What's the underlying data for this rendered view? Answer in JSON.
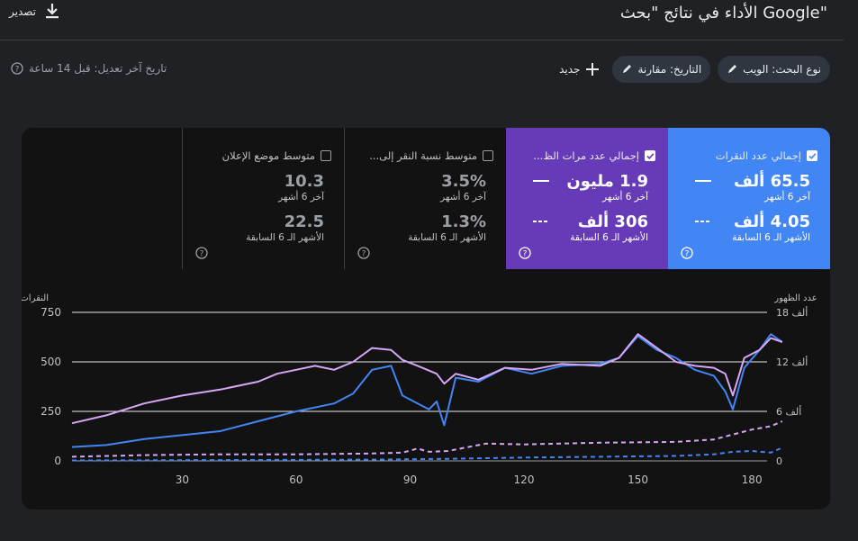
{
  "header": {
    "title": "الأداء في نتائج \"بحث Google\"",
    "export_label": "تصدير"
  },
  "filters": {
    "search_type": "نوع البحث: الويب",
    "date": "التاريخ: مقارنة",
    "new_label": "جديد",
    "last_updated": "تاريخ آخر تعديل: قبل 14 ساعة"
  },
  "tiles": [
    {
      "label": "إجمالي عدد النقرات",
      "checked": true,
      "value1": "65.5 ألف",
      "sub1": "آخر 6 أشهر",
      "value2": "4.05 ألف",
      "sub2": "الأشهر الـ 6 السابقة"
    },
    {
      "label": "إجمالي عدد مرات الظ...",
      "checked": true,
      "value1": "1.9 مليون",
      "sub1": "آخر 6 أشهر",
      "value2": "306 ألف",
      "sub2": "الأشهر الـ 6 السابقة"
    },
    {
      "label": "متوسط نسبة النقر إلى...",
      "checked": false,
      "value1": "3.5%",
      "sub1": "آخر 6 أشهر",
      "value2": "1.3%",
      "sub2": "الأشهر الـ 6 السابقة"
    },
    {
      "label": "متوسط موضع الإعلان",
      "checked": false,
      "value1": "10.3",
      "sub1": "آخر 6 أشهر",
      "value2": "22.5",
      "sub2": "الأشهر الـ 6 السابقة"
    }
  ],
  "colors": {
    "clicks": "#4285f4",
    "impressions": "#d7a6f5",
    "tile_clicks": "#4285f4",
    "tile_impressions": "#673ab7"
  },
  "chart_data": {
    "type": "line",
    "xlabel": "",
    "ylabel": "النقرات",
    "ylabel_right": "عدد الظهور",
    "x_ticks": [
      30,
      60,
      90,
      120,
      150,
      180
    ],
    "xlim": [
      1,
      184
    ],
    "ylim": [
      0,
      750
    ],
    "y_ticks": [
      0,
      250,
      500,
      750
    ],
    "ylim_right": [
      0,
      18
    ],
    "y_ticks_right": [
      "0",
      "6 ألف",
      "12 ألف",
      "18 ألف"
    ],
    "grid": true,
    "series": [
      {
        "axis": "left",
        "style": "solid",
        "color": "#4285f4",
        "points": [
          [
            1,
            70
          ],
          [
            10,
            80
          ],
          [
            20,
            110
          ],
          [
            30,
            130
          ],
          [
            40,
            150
          ],
          [
            50,
            200
          ],
          [
            60,
            250
          ],
          [
            70,
            290
          ],
          [
            75,
            340
          ],
          [
            80,
            460
          ],
          [
            85,
            480
          ],
          [
            88,
            330
          ],
          [
            92,
            290
          ],
          [
            95,
            260
          ],
          [
            97,
            300
          ],
          [
            99,
            180
          ],
          [
            102,
            420
          ],
          [
            108,
            400
          ],
          [
            115,
            470
          ],
          [
            122,
            440
          ],
          [
            130,
            480
          ],
          [
            140,
            490
          ],
          [
            145,
            520
          ],
          [
            150,
            630
          ],
          [
            155,
            560
          ],
          [
            160,
            520
          ],
          [
            165,
            460
          ],
          [
            170,
            430
          ],
          [
            173,
            350
          ],
          [
            175,
            260
          ],
          [
            178,
            470
          ],
          [
            182,
            560
          ],
          [
            185,
            640
          ],
          [
            188,
            600
          ]
        ]
      },
      {
        "axis": "left",
        "style": "solid",
        "color": "#d7a6f5",
        "points": [
          [
            1,
            190
          ],
          [
            10,
            230
          ],
          [
            20,
            290
          ],
          [
            30,
            330
          ],
          [
            40,
            360
          ],
          [
            50,
            400
          ],
          [
            55,
            440
          ],
          [
            60,
            460
          ],
          [
            65,
            480
          ],
          [
            70,
            460
          ],
          [
            75,
            500
          ],
          [
            80,
            570
          ],
          [
            85,
            560
          ],
          [
            88,
            510
          ],
          [
            92,
            480
          ],
          [
            97,
            440
          ],
          [
            99,
            390
          ],
          [
            102,
            440
          ],
          [
            108,
            410
          ],
          [
            115,
            470
          ],
          [
            122,
            460
          ],
          [
            130,
            490
          ],
          [
            140,
            480
          ],
          [
            145,
            520
          ],
          [
            150,
            640
          ],
          [
            155,
            570
          ],
          [
            160,
            500
          ],
          [
            165,
            480
          ],
          [
            170,
            470
          ],
          [
            173,
            440
          ],
          [
            175,
            330
          ],
          [
            178,
            520
          ],
          [
            182,
            560
          ],
          [
            185,
            620
          ],
          [
            188,
            600
          ]
        ]
      },
      {
        "axis": "right",
        "style": "dashed",
        "color": "#d7a6f5",
        "points": [
          [
            1,
            0.5
          ],
          [
            20,
            0.7
          ],
          [
            40,
            0.8
          ],
          [
            60,
            0.8
          ],
          [
            80,
            0.9
          ],
          [
            88,
            1.0
          ],
          [
            92,
            1.5
          ],
          [
            95,
            1.1
          ],
          [
            100,
            1.2
          ],
          [
            110,
            2.1
          ],
          [
            120,
            2.0
          ],
          [
            140,
            2.2
          ],
          [
            160,
            2.3
          ],
          [
            170,
            2.6
          ],
          [
            175,
            3.2
          ],
          [
            180,
            3.8
          ],
          [
            185,
            4.2
          ],
          [
            188,
            4.8
          ]
        ]
      },
      {
        "axis": "right",
        "style": "dashed",
        "color": "#4285f4",
        "points": [
          [
            1,
            0.05
          ],
          [
            40,
            0.1
          ],
          [
            80,
            0.15
          ],
          [
            100,
            0.25
          ],
          [
            120,
            0.4
          ],
          [
            140,
            0.5
          ],
          [
            160,
            0.6
          ],
          [
            170,
            0.8
          ],
          [
            175,
            1.1
          ],
          [
            180,
            1.2
          ],
          [
            185,
            1.0
          ],
          [
            188,
            1.6
          ]
        ]
      }
    ]
  }
}
